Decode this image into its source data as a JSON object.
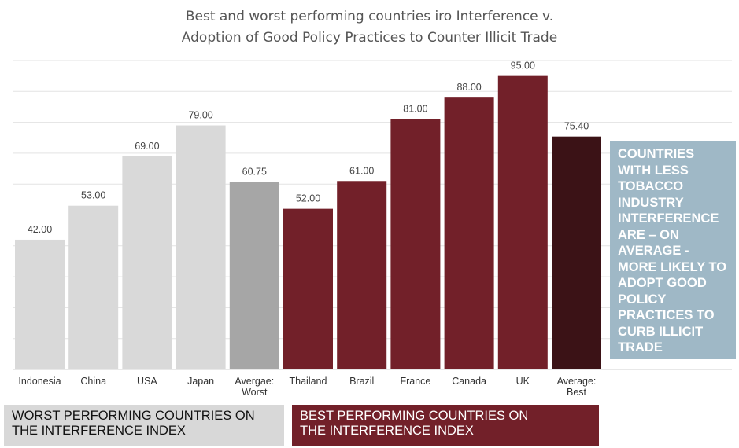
{
  "chart_data": {
    "type": "bar",
    "title": "Best and worst performing countries iro Interference v. Adoption of Good Policy Practices to Counter Illicit Trade",
    "title_lines": [
      "Best and worst performing countries iro Interference v.",
      "Adoption of Good Policy Practices to Counter Illicit Trade"
    ],
    "categories": [
      "Indonesia",
      "China",
      "USA",
      "Japan",
      "Avergae:\nWorst",
      "Thailand",
      "Brazil",
      "France",
      "Canada",
      "UK",
      "Average:\nBest"
    ],
    "values": [
      42.0,
      53.0,
      69.0,
      79.0,
      60.75,
      52.0,
      61.0,
      81.0,
      88.0,
      95.0,
      75.4
    ],
    "value_labels": [
      "42.00",
      "53.00",
      "69.00",
      "79.00",
      "60.75",
      "52.00",
      "61.00",
      "81.00",
      "88.00",
      "95.00",
      "75.40"
    ],
    "bar_colors": [
      "#d9d9d9",
      "#d9d9d9",
      "#d9d9d9",
      "#d9d9d9",
      "#a6a6a6",
      "#722029",
      "#722029",
      "#722029",
      "#722029",
      "#722029",
      "#3b1216"
    ],
    "ylim": [
      0,
      100
    ],
    "grid": true,
    "xlabel": "",
    "ylabel": ""
  },
  "callout": {
    "text": "COUNTRIES WITH LESS TOBACCO INDUSTRY INTERFERENCE ARE – ON AVERAGE - MORE LIKELY TO ADOPT GOOD POLICY PRACTICES TO CURB ILLICIT TRADE",
    "lines": [
      "COUNTRIES",
      "WITH LESS",
      "TOBACCO",
      "INDUSTRY",
      "INTERFERENCE",
      "ARE – ON",
      "AVERAGE -",
      "MORE LIKELY TO",
      "ADOPT GOOD",
      "POLICY",
      "PRACTICES TO",
      "CURB ILLICIT",
      "TRADE"
    ],
    "color": "#9fb8c6"
  },
  "groups": {
    "worst": {
      "line1": "WORST PERFORMING COUNTRIES ON",
      "line2": "THE INTERFERENCE INDEX",
      "color": "#d8d8d8"
    },
    "best": {
      "line1": "BEST PERFORMING COUNTRIES ON",
      "line2": "THE INTERFERENCE INDEX",
      "color": "#722029"
    }
  }
}
